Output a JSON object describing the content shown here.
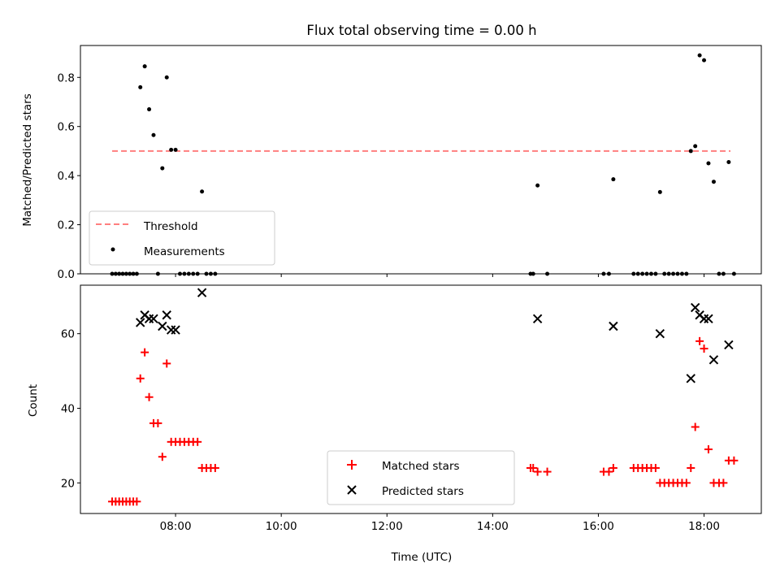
{
  "chart_data": [
    {
      "type": "scatter",
      "title": "Flux total observing time = 0.00 h",
      "xlabel": "",
      "ylabel": "Matched/Predicted stars",
      "ylim": [
        0,
        0.93
      ],
      "xlim": [
        "06:12",
        "19:05"
      ],
      "yticks": [
        "0.0",
        "0.2",
        "0.4",
        "0.6",
        "0.8"
      ],
      "legend_position": "lower-left",
      "threshold": {
        "name": "Threshold",
        "value": 0.5,
        "x_start": "06:48",
        "x_end": "18:30",
        "color": "#ff7f7f",
        "style": "dashed"
      },
      "series": [
        {
          "name": "Measurements",
          "color": "#000000",
          "points": [
            {
              "x": "06:48",
              "y": 0
            },
            {
              "x": "06:52",
              "y": 0
            },
            {
              "x": "06:56",
              "y": 0
            },
            {
              "x": "07:00",
              "y": 0
            },
            {
              "x": "07:04",
              "y": 0
            },
            {
              "x": "07:08",
              "y": 0
            },
            {
              "x": "07:12",
              "y": 0
            },
            {
              "x": "07:16",
              "y": 0
            },
            {
              "x": "07:20",
              "y": 0.76
            },
            {
              "x": "07:25",
              "y": 0.845
            },
            {
              "x": "07:30",
              "y": 0.67
            },
            {
              "x": "07:35",
              "y": 0.565
            },
            {
              "x": "07:40",
              "y": 0
            },
            {
              "x": "07:45",
              "y": 0.43
            },
            {
              "x": "07:50",
              "y": 0.8
            },
            {
              "x": "07:55",
              "y": 0.505
            },
            {
              "x": "08:00",
              "y": 0.505
            },
            {
              "x": "08:05",
              "y": 0
            },
            {
              "x": "08:10",
              "y": 0
            },
            {
              "x": "08:15",
              "y": 0
            },
            {
              "x": "08:20",
              "y": 0
            },
            {
              "x": "08:25",
              "y": 0
            },
            {
              "x": "08:30",
              "y": 0.335
            },
            {
              "x": "08:35",
              "y": 0
            },
            {
              "x": "08:40",
              "y": 0
            },
            {
              "x": "08:45",
              "y": 0
            },
            {
              "x": "14:43",
              "y": 0
            },
            {
              "x": "14:46",
              "y": 0
            },
            {
              "x": "14:51",
              "y": 0.36
            },
            {
              "x": "15:02",
              "y": 0
            },
            {
              "x": "16:06",
              "y": 0
            },
            {
              "x": "16:12",
              "y": 0
            },
            {
              "x": "16:17",
              "y": 0.385
            },
            {
              "x": "16:40",
              "y": 0
            },
            {
              "x": "16:45",
              "y": 0
            },
            {
              "x": "16:50",
              "y": 0
            },
            {
              "x": "16:55",
              "y": 0
            },
            {
              "x": "17:00",
              "y": 0
            },
            {
              "x": "17:05",
              "y": 0
            },
            {
              "x": "17:10",
              "y": 0.333
            },
            {
              "x": "17:15",
              "y": 0
            },
            {
              "x": "17:20",
              "y": 0
            },
            {
              "x": "17:25",
              "y": 0
            },
            {
              "x": "17:30",
              "y": 0
            },
            {
              "x": "17:35",
              "y": 0
            },
            {
              "x": "17:40",
              "y": 0
            },
            {
              "x": "17:45",
              "y": 0.5
            },
            {
              "x": "17:50",
              "y": 0.52
            },
            {
              "x": "17:55",
              "y": 0.89
            },
            {
              "x": "18:00",
              "y": 0.87
            },
            {
              "x": "18:05",
              "y": 0.45
            },
            {
              "x": "18:11",
              "y": 0.375
            },
            {
              "x": "18:17",
              "y": 0
            },
            {
              "x": "18:22",
              "y": 0
            },
            {
              "x": "18:28",
              "y": 0.455
            },
            {
              "x": "18:34",
              "y": 0
            }
          ]
        }
      ]
    },
    {
      "type": "scatter",
      "title": "",
      "xlabel": "Time (UTC)",
      "ylabel": "Count",
      "ylim": [
        11.8,
        73.0
      ],
      "xlim": [
        "06:12",
        "19:05"
      ],
      "xticks": [
        "08:00",
        "10:00",
        "12:00",
        "14:00",
        "16:00",
        "18:00"
      ],
      "yticks": [
        "20",
        "40",
        "60"
      ],
      "legend_position": "lower-center",
      "series": [
        {
          "name": "Matched stars",
          "color": "#ff0000",
          "marker": "+",
          "points": [
            {
              "x": "06:48",
              "y": 15
            },
            {
              "x": "06:52",
              "y": 15
            },
            {
              "x": "06:56",
              "y": 15
            },
            {
              "x": "07:00",
              "y": 15
            },
            {
              "x": "07:04",
              "y": 15
            },
            {
              "x": "07:08",
              "y": 15
            },
            {
              "x": "07:12",
              "y": 15
            },
            {
              "x": "07:16",
              "y": 15
            },
            {
              "x": "07:20",
              "y": 48
            },
            {
              "x": "07:25",
              "y": 55
            },
            {
              "x": "07:30",
              "y": 43
            },
            {
              "x": "07:35",
              "y": 36
            },
            {
              "x": "07:40",
              "y": 36
            },
            {
              "x": "07:45",
              "y": 27
            },
            {
              "x": "07:50",
              "y": 52
            },
            {
              "x": "07:55",
              "y": 31
            },
            {
              "x": "08:00",
              "y": 31
            },
            {
              "x": "08:05",
              "y": 31
            },
            {
              "x": "08:10",
              "y": 31
            },
            {
              "x": "08:15",
              "y": 31
            },
            {
              "x": "08:20",
              "y": 31
            },
            {
              "x": "08:25",
              "y": 31
            },
            {
              "x": "08:30",
              "y": 24
            },
            {
              "x": "08:35",
              "y": 24
            },
            {
              "x": "08:40",
              "y": 24
            },
            {
              "x": "08:45",
              "y": 24
            },
            {
              "x": "14:43",
              "y": 24
            },
            {
              "x": "14:46",
              "y": 24
            },
            {
              "x": "14:51",
              "y": 23
            },
            {
              "x": "15:02",
              "y": 23
            },
            {
              "x": "16:06",
              "y": 23
            },
            {
              "x": "16:12",
              "y": 23
            },
            {
              "x": "16:17",
              "y": 24
            },
            {
              "x": "16:40",
              "y": 24
            },
            {
              "x": "16:45",
              "y": 24
            },
            {
              "x": "16:50",
              "y": 24
            },
            {
              "x": "16:55",
              "y": 24
            },
            {
              "x": "17:00",
              "y": 24
            },
            {
              "x": "17:05",
              "y": 24
            },
            {
              "x": "17:10",
              "y": 20
            },
            {
              "x": "17:15",
              "y": 20
            },
            {
              "x": "17:20",
              "y": 20
            },
            {
              "x": "17:25",
              "y": 20
            },
            {
              "x": "17:30",
              "y": 20
            },
            {
              "x": "17:35",
              "y": 20
            },
            {
              "x": "17:40",
              "y": 20
            },
            {
              "x": "17:45",
              "y": 24
            },
            {
              "x": "17:50",
              "y": 35
            },
            {
              "x": "17:55",
              "y": 58
            },
            {
              "x": "18:00",
              "y": 56
            },
            {
              "x": "18:05",
              "y": 29
            },
            {
              "x": "18:11",
              "y": 20
            },
            {
              "x": "18:17",
              "y": 20
            },
            {
              "x": "18:22",
              "y": 20
            },
            {
              "x": "18:28",
              "y": 26
            },
            {
              "x": "18:34",
              "y": 26
            }
          ]
        },
        {
          "name": "Predicted stars",
          "color": "#000000",
          "marker": "x",
          "points": [
            {
              "x": "07:20",
              "y": 63
            },
            {
              "x": "07:25",
              "y": 65
            },
            {
              "x": "07:30",
              "y": 64
            },
            {
              "x": "07:35",
              "y": 64
            },
            {
              "x": "07:45",
              "y": 62
            },
            {
              "x": "07:50",
              "y": 65
            },
            {
              "x": "07:55",
              "y": 61
            },
            {
              "x": "08:00",
              "y": 61
            },
            {
              "x": "08:30",
              "y": 71
            },
            {
              "x": "14:51",
              "y": 64
            },
            {
              "x": "16:17",
              "y": 62
            },
            {
              "x": "17:10",
              "y": 60
            },
            {
              "x": "17:45",
              "y": 48
            },
            {
              "x": "17:50",
              "y": 67
            },
            {
              "x": "17:55",
              "y": 65
            },
            {
              "x": "18:00",
              "y": 64
            },
            {
              "x": "18:05",
              "y": 64
            },
            {
              "x": "18:11",
              "y": 53
            },
            {
              "x": "18:28",
              "y": 57
            }
          ]
        }
      ]
    }
  ]
}
